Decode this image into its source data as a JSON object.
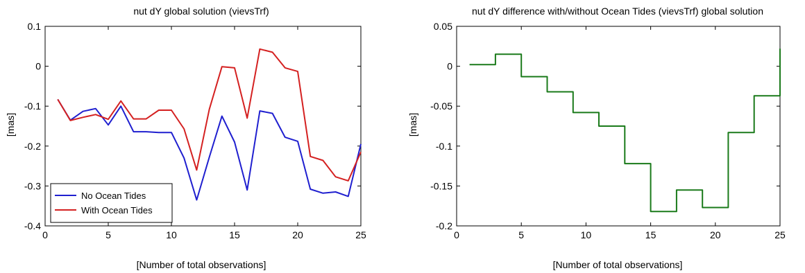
{
  "chart_data": [
    {
      "type": "line",
      "title": "nut dY global solution (vievsTrf)",
      "xlabel": "[Number of total observations]",
      "ylabel": "[mas]",
      "xlim": [
        0,
        25
      ],
      "ylim": [
        -0.4,
        0.1
      ],
      "xticks": [
        0,
        5,
        10,
        15,
        20,
        25
      ],
      "yticks": [
        -0.4,
        -0.3,
        -0.2,
        -0.1,
        0,
        0.1
      ],
      "xtick_labels": [
        "0",
        "5",
        "10",
        "15",
        "20",
        "25"
      ],
      "ytick_labels": [
        "-0.4",
        "-0.3",
        "-0.2",
        "-0.1",
        "0",
        "0.1"
      ],
      "grid": false,
      "legend_position": "bottom-left",
      "series": [
        {
          "name": "No Ocean Tides",
          "color": "#1f1fcf",
          "x": [
            1,
            2,
            3,
            4,
            5,
            6,
            7,
            8,
            9,
            10,
            11,
            12,
            13,
            14,
            15,
            16,
            17,
            18,
            19,
            20,
            21,
            22,
            23,
            24,
            25
          ],
          "y": [
            -0.083,
            -0.135,
            -0.113,
            -0.106,
            -0.147,
            -0.1,
            -0.164,
            -0.164,
            -0.166,
            -0.166,
            -0.23,
            -0.335,
            -0.228,
            -0.125,
            -0.19,
            -0.31,
            -0.112,
            -0.118,
            -0.178,
            -0.188,
            -0.308,
            -0.318,
            -0.315,
            -0.326,
            -0.195
          ]
        },
        {
          "name": "With Ocean Tides",
          "color": "#d42020",
          "x": [
            1,
            2,
            3,
            4,
            5,
            6,
            7,
            8,
            9,
            10,
            11,
            12,
            13,
            14,
            15,
            16,
            17,
            18,
            19,
            20,
            21,
            22,
            23,
            24,
            25
          ],
          "y": [
            -0.083,
            -0.136,
            -0.128,
            -0.121,
            -0.133,
            -0.087,
            -0.132,
            -0.132,
            -0.11,
            -0.11,
            -0.157,
            -0.26,
            -0.108,
            -0.001,
            -0.004,
            -0.13,
            0.043,
            0.035,
            -0.004,
            -0.013,
            -0.226,
            -0.236,
            -0.277,
            -0.287,
            -0.215
          ]
        }
      ]
    },
    {
      "type": "line",
      "title": "nut dY difference with/without Ocean Tides (vievsTrf) global solution",
      "xlabel": "[Number of total observations]",
      "ylabel": "[mas]",
      "xlim": [
        0,
        25
      ],
      "ylim": [
        -0.2,
        0.05
      ],
      "xticks": [
        0,
        5,
        10,
        15,
        20,
        25
      ],
      "yticks": [
        -0.2,
        -0.15,
        -0.1,
        -0.05,
        0,
        0.05
      ],
      "xtick_labels": [
        "0",
        "5",
        "10",
        "15",
        "20",
        "25"
      ],
      "ytick_labels": [
        "-0.2",
        "-0.15",
        "-0.1",
        "-0.05",
        "0",
        "0.05"
      ],
      "grid": false,
      "step": true,
      "series": [
        {
          "color": "#1a7a1a",
          "x": [
            1,
            3,
            5,
            7,
            9,
            11,
            13,
            15,
            17,
            19,
            21,
            23,
            25
          ],
          "y": [
            0.002,
            0.015,
            -0.013,
            -0.032,
            -0.058,
            -0.075,
            -0.122,
            -0.182,
            -0.155,
            -0.177,
            -0.083,
            -0.037,
            0.022
          ]
        }
      ]
    }
  ]
}
